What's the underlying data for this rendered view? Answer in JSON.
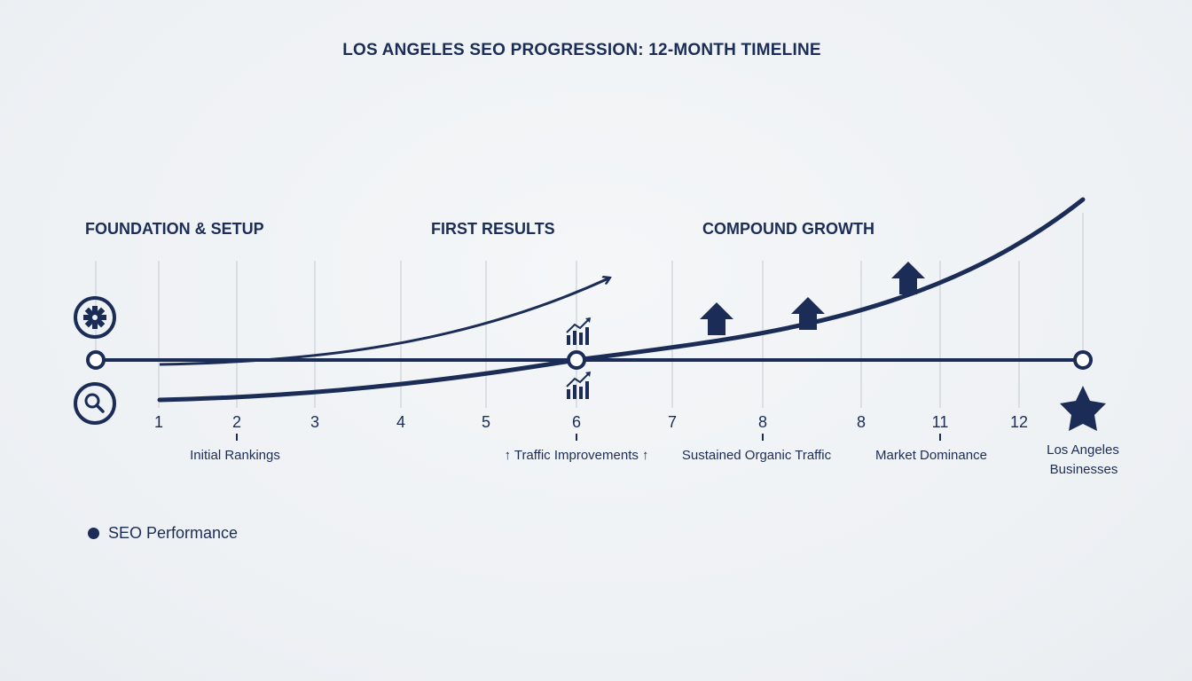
{
  "title": "LOS ANGELES SEO PROGRESSION: 12-MONTH TIMELINE",
  "phases": [
    {
      "label": "FOUNDATION & SETUP"
    },
    {
      "label": "FIRST RESULTS"
    },
    {
      "label": "COMPOUND GROWTH"
    }
  ],
  "ticks": [
    "1",
    "2",
    "3",
    "4",
    "5",
    "6",
    "7",
    "8",
    "8",
    "11",
    "12"
  ],
  "milestones": [
    {
      "label": "Initial Rankings"
    },
    {
      "label": "↑ Traffic Improvements ↑"
    },
    {
      "label": "Sustained Organic Traffic"
    },
    {
      "label": "Market Dominance"
    }
  ],
  "endpoint": {
    "line1": "Los Angeles",
    "line2": "Businesses"
  },
  "legend": {
    "label": "SEO Performance"
  },
  "icons": {
    "top": "gear-icon",
    "bottom": "search-icon",
    "growth": "bar-chart-growth-icon",
    "milestone": "up-arrow-icon",
    "end": "star-icon"
  },
  "colors": {
    "primary": "#1b2d57",
    "grid": "#d3d8de",
    "background": "#f0f3f6"
  }
}
